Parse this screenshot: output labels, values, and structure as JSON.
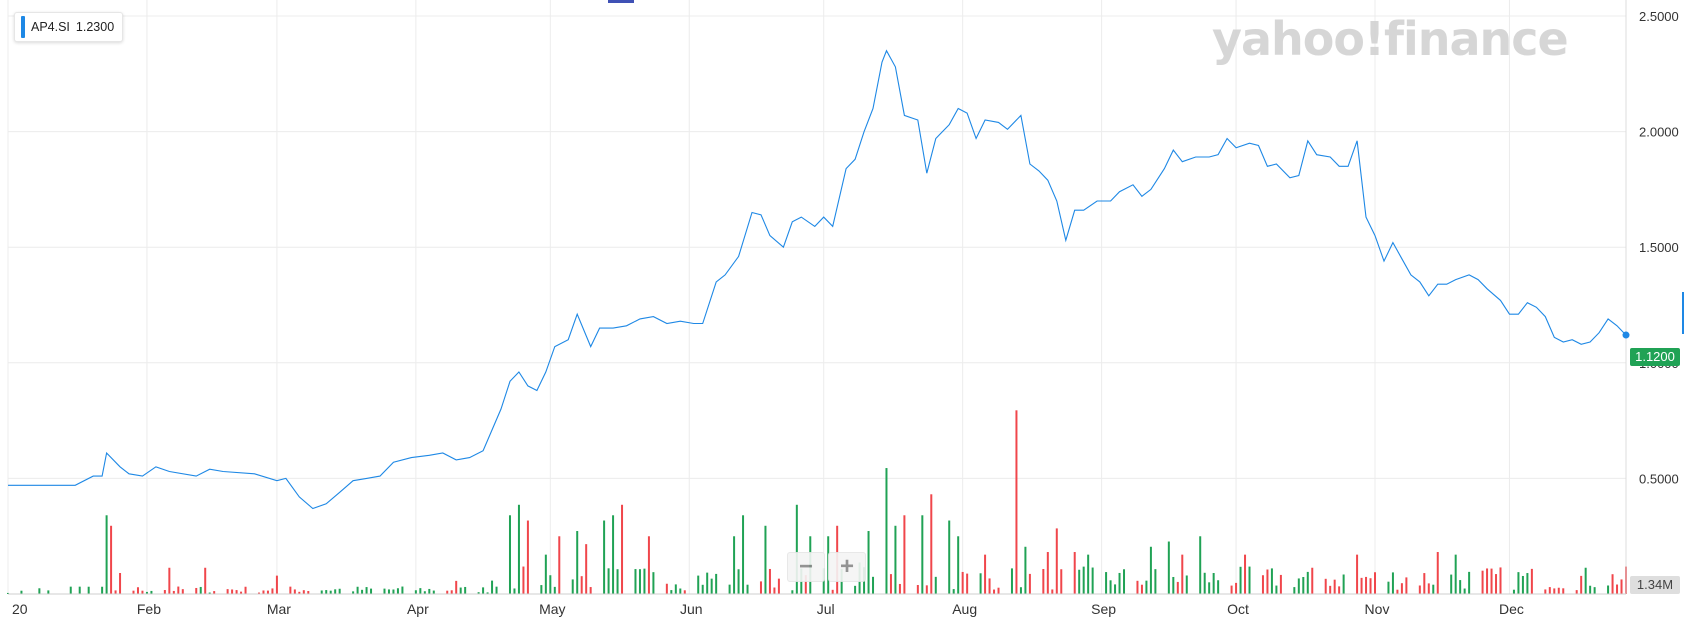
{
  "legend": {
    "symbol": "AP4.SI",
    "value": "1.2300",
    "color": "#1e88e5"
  },
  "watermark": "yahoo!finance",
  "last_price_label": "1.1200",
  "volume_label": "1.34M",
  "zoom": {
    "minus_label": "−",
    "plus_label": "+"
  },
  "colors": {
    "line": "#1e88e5",
    "up": "#20a255",
    "down": "#f0464b",
    "grid": "#ececec"
  },
  "chart_data": {
    "type": "line",
    "series_name": "AP4.SI",
    "ylim": [
      0,
      2.5
    ],
    "y_ticks": [
      "2.5000",
      "2.0000",
      "1.5000",
      "1.0000",
      "0.5000"
    ],
    "x_ticks": [
      "20",
      "Feb",
      "Mar",
      "Apr",
      "May",
      "Jun",
      "Jul",
      "Aug",
      "Sep",
      "Oct",
      "Nov",
      "Dec"
    ],
    "price_anchors": [
      [
        0,
        0.47
      ],
      [
        4,
        0.47
      ],
      [
        15,
        0.47
      ],
      [
        19,
        0.51
      ],
      [
        21,
        0.51
      ],
      [
        22,
        0.61
      ],
      [
        25,
        0.55
      ],
      [
        27,
        0.52
      ],
      [
        30,
        0.51
      ],
      [
        33,
        0.55
      ],
      [
        36,
        0.53
      ],
      [
        42,
        0.51
      ],
      [
        45,
        0.54
      ],
      [
        48,
        0.53
      ],
      [
        55,
        0.52
      ],
      [
        60,
        0.49
      ],
      [
        62,
        0.5
      ],
      [
        65,
        0.42
      ],
      [
        68,
        0.37
      ],
      [
        71,
        0.39
      ],
      [
        74,
        0.44
      ],
      [
        77,
        0.49
      ],
      [
        80,
        0.5
      ],
      [
        83,
        0.51
      ],
      [
        86,
        0.57
      ],
      [
        90,
        0.59
      ],
      [
        94,
        0.6
      ],
      [
        97,
        0.61
      ],
      [
        100,
        0.58
      ],
      [
        103,
        0.59
      ],
      [
        106,
        0.62
      ],
      [
        110,
        0.8
      ],
      [
        112,
        0.92
      ],
      [
        114,
        0.96
      ],
      [
        116,
        0.9
      ],
      [
        118,
        0.88
      ],
      [
        120,
        0.96
      ],
      [
        122,
        1.07
      ],
      [
        125,
        1.1
      ],
      [
        127,
        1.21
      ],
      [
        130,
        1.07
      ],
      [
        132,
        1.15
      ],
      [
        135,
        1.15
      ],
      [
        138,
        1.16
      ],
      [
        141,
        1.19
      ],
      [
        144,
        1.2
      ],
      [
        147,
        1.17
      ],
      [
        150,
        1.18
      ],
      [
        153,
        1.17
      ],
      [
        155,
        1.17
      ],
      [
        158,
        1.35
      ],
      [
        160,
        1.38
      ],
      [
        163,
        1.46
      ],
      [
        166,
        1.65
      ],
      [
        168,
        1.64
      ],
      [
        170,
        1.55
      ],
      [
        173,
        1.5
      ],
      [
        175,
        1.61
      ],
      [
        177,
        1.63
      ],
      [
        180,
        1.59
      ],
      [
        182,
        1.63
      ],
      [
        184,
        1.59
      ],
      [
        187,
        1.84
      ],
      [
        189,
        1.88
      ],
      [
        191,
        2.0
      ],
      [
        193,
        2.1
      ],
      [
        195,
        2.3
      ],
      [
        196,
        2.35
      ],
      [
        198,
        2.28
      ],
      [
        200,
        2.07
      ],
      [
        203,
        2.05
      ],
      [
        205,
        1.82
      ],
      [
        207,
        1.97
      ],
      [
        210,
        2.03
      ],
      [
        212,
        2.1
      ],
      [
        214,
        2.08
      ],
      [
        216,
        1.97
      ],
      [
        218,
        2.05
      ],
      [
        221,
        2.04
      ],
      [
        223,
        2.01
      ],
      [
        226,
        2.07
      ],
      [
        228,
        1.86
      ],
      [
        230,
        1.83
      ],
      [
        232,
        1.79
      ],
      [
        234,
        1.7
      ],
      [
        236,
        1.53
      ],
      [
        238,
        1.66
      ],
      [
        240,
        1.66
      ],
      [
        243,
        1.7
      ],
      [
        246,
        1.7
      ],
      [
        248,
        1.74
      ],
      [
        251,
        1.77
      ],
      [
        253,
        1.72
      ],
      [
        255,
        1.75
      ],
      [
        258,
        1.84
      ],
      [
        260,
        1.92
      ],
      [
        262,
        1.87
      ],
      [
        265,
        1.89
      ],
      [
        268,
        1.89
      ],
      [
        270,
        1.9
      ],
      [
        272,
        1.97
      ],
      [
        274,
        1.93
      ],
      [
        277,
        1.95
      ],
      [
        279,
        1.94
      ],
      [
        281,
        1.85
      ],
      [
        283,
        1.86
      ],
      [
        286,
        1.8
      ],
      [
        288,
        1.81
      ],
      [
        290,
        1.96
      ],
      [
        292,
        1.9
      ],
      [
        295,
        1.89
      ],
      [
        297,
        1.85
      ],
      [
        299,
        1.85
      ],
      [
        301,
        1.96
      ],
      [
        303,
        1.63
      ],
      [
        305,
        1.55
      ],
      [
        307,
        1.44
      ],
      [
        309,
        1.52
      ],
      [
        311,
        1.45
      ],
      [
        313,
        1.38
      ],
      [
        315,
        1.35
      ],
      [
        317,
        1.29
      ],
      [
        319,
        1.34
      ],
      [
        321,
        1.34
      ],
      [
        323,
        1.36
      ],
      [
        326,
        1.38
      ],
      [
        328,
        1.36
      ],
      [
        330,
        1.32
      ],
      [
        333,
        1.27
      ],
      [
        335,
        1.21
      ],
      [
        337,
        1.21
      ],
      [
        339,
        1.26
      ],
      [
        341,
        1.24
      ],
      [
        343,
        1.2
      ],
      [
        345,
        1.11
      ],
      [
        347,
        1.09
      ],
      [
        349,
        1.1
      ],
      [
        351,
        1.08
      ],
      [
        353,
        1.09
      ],
      [
        355,
        1.13
      ],
      [
        357,
        1.19
      ],
      [
        359,
        1.16
      ],
      [
        361,
        1.12
      ]
    ],
    "volume_spikes": [
      [
        22,
        0.3,
        "up"
      ],
      [
        23,
        0.26,
        "down"
      ],
      [
        25,
        0.08,
        "down"
      ],
      [
        36,
        0.1,
        "down"
      ],
      [
        44,
        0.1,
        "down"
      ],
      [
        60,
        0.07,
        "down"
      ],
      [
        100,
        0.05,
        "down"
      ],
      [
        110,
        0.24,
        "up"
      ],
      [
        112,
        0.3,
        "up"
      ],
      [
        114,
        0.34,
        "up"
      ],
      [
        116,
        0.28,
        "down"
      ],
      [
        118,
        0.2,
        "down"
      ],
      [
        120,
        0.15,
        "up"
      ],
      [
        123,
        0.22,
        "down"
      ],
      [
        125,
        0.34,
        "up"
      ],
      [
        127,
        0.24,
        "up"
      ],
      [
        129,
        0.19,
        "down"
      ],
      [
        133,
        0.28,
        "up"
      ],
      [
        135,
        0.3,
        "up"
      ],
      [
        137,
        0.34,
        "down"
      ],
      [
        139,
        0.26,
        "up"
      ],
      [
        143,
        0.22,
        "down"
      ],
      [
        146,
        0.22,
        "down"
      ],
      [
        162,
        0.22,
        "up"
      ],
      [
        164,
        0.3,
        "up"
      ],
      [
        166,
        0.22,
        "down"
      ],
      [
        169,
        0.26,
        "up"
      ],
      [
        173,
        0.26,
        "down"
      ],
      [
        176,
        0.34,
        "up"
      ],
      [
        179,
        0.22,
        "up"
      ],
      [
        181,
        0.22,
        "down"
      ],
      [
        183,
        0.22,
        "up"
      ],
      [
        185,
        0.26,
        "down"
      ],
      [
        188,
        0.34,
        "up"
      ],
      [
        190,
        0.12,
        "up"
      ],
      [
        192,
        0.24,
        "up"
      ],
      [
        194,
        0.3,
        "up"
      ],
      [
        196,
        0.48,
        "up"
      ],
      [
        198,
        0.26,
        "up"
      ],
      [
        200,
        0.3,
        "down"
      ],
      [
        202,
        0.38,
        "down"
      ],
      [
        204,
        0.3,
        "up"
      ],
      [
        206,
        0.38,
        "down"
      ],
      [
        208,
        0.32,
        "down"
      ],
      [
        210,
        0.28,
        "up"
      ],
      [
        212,
        0.22,
        "up"
      ],
      [
        216,
        0.2,
        "down"
      ],
      [
        218,
        0.15,
        "down"
      ],
      [
        225,
        0.7,
        "down"
      ],
      [
        227,
        0.18,
        "up"
      ],
      [
        232,
        0.16,
        "down"
      ],
      [
        234,
        0.25,
        "down"
      ],
      [
        236,
        0.2,
        "up"
      ],
      [
        238,
        0.16,
        "down"
      ],
      [
        241,
        0.15,
        "up"
      ],
      [
        244,
        0.18,
        "up"
      ],
      [
        250,
        0.15,
        "down"
      ],
      [
        255,
        0.18,
        "up"
      ],
      [
        259,
        0.2,
        "up"
      ],
      [
        262,
        0.15,
        "down"
      ],
      [
        266,
        0.22,
        "up"
      ],
      [
        276,
        0.15,
        "down"
      ],
      [
        285,
        0.15,
        "up"
      ],
      [
        293,
        0.22,
        "up"
      ],
      [
        301,
        0.15,
        "down"
      ],
      [
        307,
        0.2,
        "down"
      ],
      [
        313,
        0.17,
        "down"
      ],
      [
        319,
        0.16,
        "down"
      ],
      [
        323,
        0.15,
        "up"
      ]
    ]
  }
}
